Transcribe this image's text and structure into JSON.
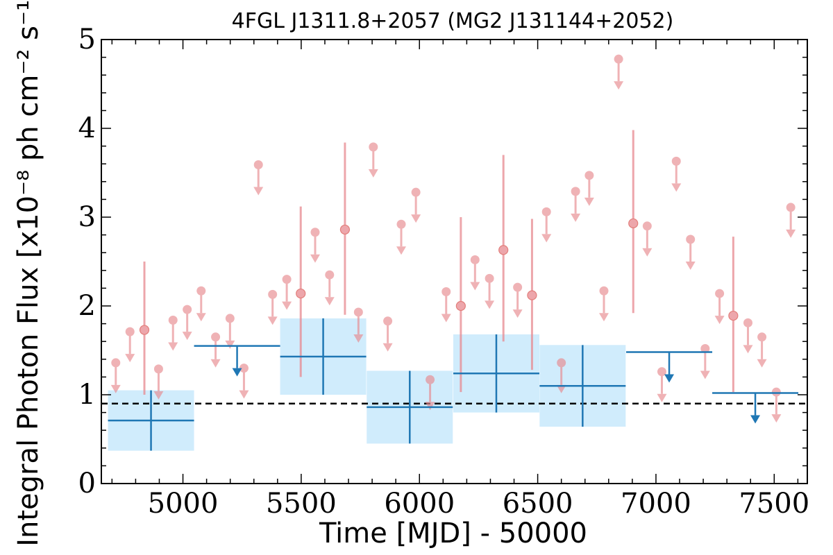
{
  "chart_data": {
    "type": "scatter",
    "title": "4FGL J1311.8+2057 (MG2 J131144+2052)",
    "xlabel": "Time [MJD] - 50000",
    "ylabel": "Integral Photon Flux [x10⁻⁸ ph cm⁻² s⁻¹]",
    "xlim": [
      4655,
      7640
    ],
    "ylim": [
      0,
      5
    ],
    "x_ticks": [
      5000,
      5500,
      6000,
      6500,
      7000,
      7500
    ],
    "y_ticks": [
      0,
      1,
      2,
      3,
      4,
      5
    ],
    "reference_line": {
      "y": 0.9,
      "style": "dashed"
    },
    "colors": {
      "short_bins": "#e8898f",
      "long_bins": "#1f77b4",
      "band_fill": "#d0ecfc",
      "reference": "#000000"
    },
    "long_bins": {
      "detections": [
        {
          "x": 4865,
          "xerr": 182,
          "y": 0.71,
          "lo": 0.37,
          "hi": 1.05
        },
        {
          "x": 5593,
          "xerr": 182,
          "y": 1.43,
          "lo": 1.0,
          "hi": 1.86
        },
        {
          "x": 5959,
          "xerr": 182,
          "y": 0.86,
          "lo": 0.45,
          "hi": 1.27
        },
        {
          "x": 6325,
          "xerr": 182,
          "y": 1.24,
          "lo": 0.8,
          "hi": 1.68
        },
        {
          "x": 6690,
          "xerr": 182,
          "y": 1.1,
          "lo": 0.64,
          "hi": 1.56
        }
      ],
      "upper_limits": [
        {
          "x": 5229,
          "xerr": 182,
          "y": 1.55
        },
        {
          "x": 7056,
          "xerr": 182,
          "y": 1.48
        },
        {
          "x": 7420,
          "xerr": 182,
          "y": 1.02
        }
      ]
    },
    "short_bins": {
      "detections": [
        {
          "x": 4837,
          "y": 1.73,
          "lo": 1.0,
          "hi": 2.5
        },
        {
          "x": 5498,
          "y": 2.14,
          "lo": 1.2,
          "hi": 3.12
        },
        {
          "x": 5685,
          "y": 2.86,
          "lo": 1.9,
          "hi": 3.84
        },
        {
          "x": 6175,
          "y": 2.0,
          "lo": 1.03,
          "hi": 3.0
        },
        {
          "x": 6355,
          "y": 2.63,
          "lo": 1.6,
          "hi": 3.7
        },
        {
          "x": 6476,
          "y": 2.12,
          "lo": 1.28,
          "hi": 2.98
        },
        {
          "x": 6904,
          "y": 2.93,
          "lo": 1.92,
          "hi": 3.98
        },
        {
          "x": 7327,
          "y": 1.89,
          "lo": 1.03,
          "hi": 2.78
        }
      ],
      "upper_limits": [
        {
          "x": 4716,
          "y": 1.36
        },
        {
          "x": 4776,
          "y": 1.71
        },
        {
          "x": 4897,
          "y": 1.29
        },
        {
          "x": 4958,
          "y": 1.84
        },
        {
          "x": 5018,
          "y": 1.96
        },
        {
          "x": 5077,
          "y": 2.17
        },
        {
          "x": 5138,
          "y": 1.65
        },
        {
          "x": 5199,
          "y": 1.86
        },
        {
          "x": 5258,
          "y": 1.3
        },
        {
          "x": 5319,
          "y": 3.59
        },
        {
          "x": 5379,
          "y": 2.13
        },
        {
          "x": 5439,
          "y": 2.3
        },
        {
          "x": 5559,
          "y": 2.83
        },
        {
          "x": 5620,
          "y": 2.35
        },
        {
          "x": 5742,
          "y": 1.93
        },
        {
          "x": 5805,
          "y": 3.79
        },
        {
          "x": 5866,
          "y": 1.83
        },
        {
          "x": 5923,
          "y": 2.92
        },
        {
          "x": 5985,
          "y": 3.28
        },
        {
          "x": 6045,
          "y": 1.17
        },
        {
          "x": 6113,
          "y": 2.16
        },
        {
          "x": 6235,
          "y": 2.52
        },
        {
          "x": 6296,
          "y": 2.31
        },
        {
          "x": 6415,
          "y": 2.21
        },
        {
          "x": 6537,
          "y": 3.06
        },
        {
          "x": 6600,
          "y": 1.36
        },
        {
          "x": 6660,
          "y": 3.29
        },
        {
          "x": 6718,
          "y": 3.47
        },
        {
          "x": 6780,
          "y": 2.17
        },
        {
          "x": 6842,
          "y": 4.78
        },
        {
          "x": 6963,
          "y": 2.9
        },
        {
          "x": 7025,
          "y": 1.26
        },
        {
          "x": 7086,
          "y": 3.63
        },
        {
          "x": 7146,
          "y": 2.75
        },
        {
          "x": 7208,
          "y": 1.52
        },
        {
          "x": 7269,
          "y": 2.14
        },
        {
          "x": 7389,
          "y": 1.81
        },
        {
          "x": 7448,
          "y": 1.65
        },
        {
          "x": 7509,
          "y": 1.03
        },
        {
          "x": 7570,
          "y": 3.11
        }
      ]
    }
  }
}
